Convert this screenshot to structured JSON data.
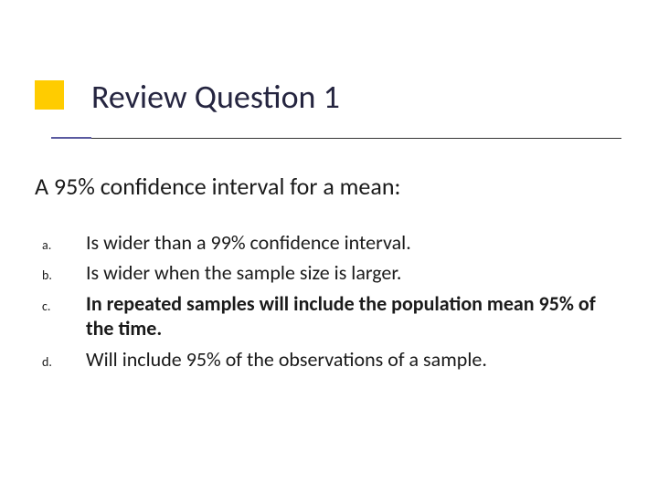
{
  "colors": {
    "accent_yellow": "#ffcc00",
    "accent_purple": "#5a5aa0",
    "title_color": "#252540",
    "text_color": "#1a1a1a",
    "rule_color": "#333333",
    "background": "#ffffff"
  },
  "typography": {
    "title_fontsize": 36,
    "stem_fontsize": 26,
    "option_fontsize": 22,
    "option_label_fontsize": 14,
    "font_family": "Calibri"
  },
  "title": "Review Question 1",
  "question_stem": "A 95% confidence interval for a mean:",
  "options": [
    {
      "label": "a.",
      "text": "Is wider than a 99% confidence interval.",
      "bold": false
    },
    {
      "label": "b.",
      "text": "Is wider when the sample size is larger.",
      "bold": false
    },
    {
      "label": "c.",
      "text": "In repeated samples will include the population mean 95% of the time.",
      "bold": true
    },
    {
      "label": "d.",
      "text": "Will include 95% of the observations of a sample.",
      "bold": false
    }
  ]
}
